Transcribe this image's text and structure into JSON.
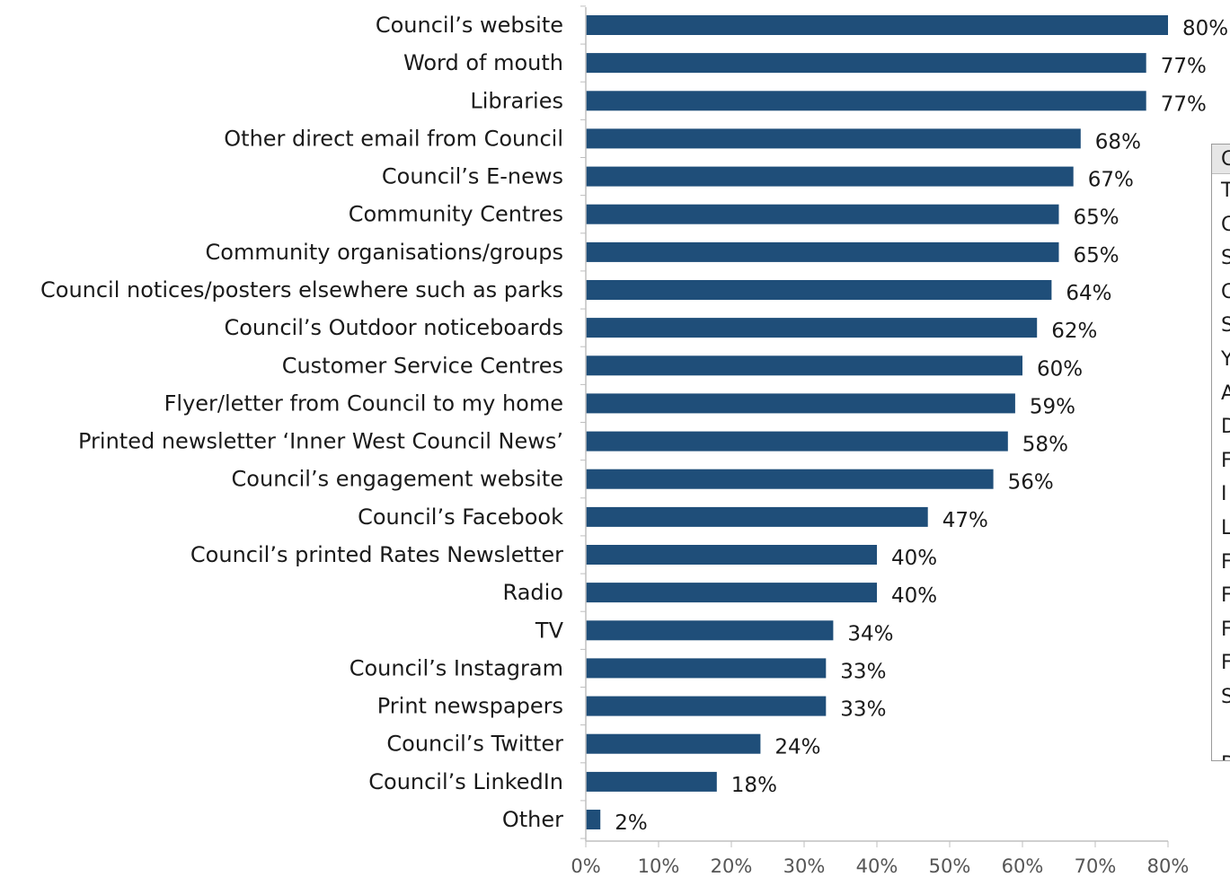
{
  "chart_data": {
    "type": "bar",
    "orientation": "horizontal",
    "categories": [
      "Council’s website",
      "Word of mouth",
      "Libraries",
      "Other direct email from Council",
      "Council’s E-news",
      "Community Centres",
      "Community organisations/groups",
      "Council notices/posters elsewhere such as parks",
      "Council’s Outdoor noticeboards",
      "Customer Service Centres",
      "Flyer/letter from Council to my home",
      "Printed newsletter ‘Inner West Council News’",
      "Council’s engagement website",
      "Council’s Facebook",
      "Council’s printed Rates Newsletter",
      "Radio",
      "TV",
      "Council’s Instagram",
      "Print newspapers",
      "Council’s Twitter",
      "Council’s LinkedIn",
      "Other"
    ],
    "values": [
      80,
      77,
      77,
      68,
      67,
      65,
      65,
      64,
      62,
      60,
      59,
      58,
      56,
      47,
      40,
      40,
      34,
      33,
      33,
      24,
      18,
      2
    ],
    "value_labels": [
      "80%",
      "77%",
      "77%",
      "68%",
      "67%",
      "65%",
      "65%",
      "64%",
      "62%",
      "60%",
      "59%",
      "58%",
      "56%",
      "47%",
      "40%",
      "40%",
      "34%",
      "33%",
      "33%",
      "24%",
      "18%",
      "2%"
    ],
    "xlim": [
      0,
      80
    ],
    "xticks": [
      "0%",
      "10%",
      "20%",
      "30%",
      "40%",
      "50%",
      "60%",
      "70%",
      "80%"
    ],
    "grid": false,
    "bar_color": "#1f4e79"
  },
  "side_panel": {
    "rows": [
      "T",
      "C",
      "S",
      "C",
      "S",
      "Y",
      "A",
      "D",
      "F",
      "I",
      "L",
      "F",
      "F",
      "F",
      "F",
      "S",
      "",
      "D"
    ],
    "header": "C"
  }
}
